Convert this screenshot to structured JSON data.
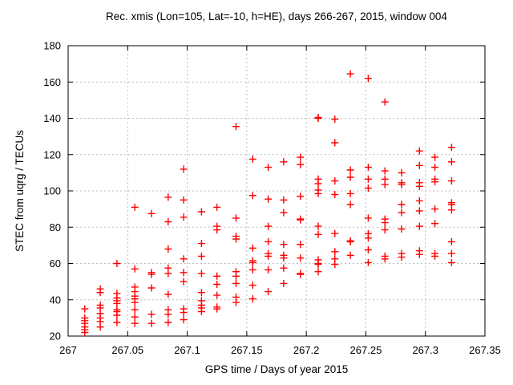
{
  "chart_data": {
    "type": "scatter",
    "title": "Rec. xmis (Lon=105, Lat=-10, h=HE), days 266-267, 2015, window 004",
    "xlabel": "GPS time / Days of year 2015",
    "ylabel": "STEC from uqrg / TECUs",
    "xlim": [
      267,
      267.35
    ],
    "ylim": [
      20,
      180
    ],
    "xticks": [
      267,
      267.05,
      267.1,
      267.15,
      267.2,
      267.25,
      267.3,
      267.35
    ],
    "xtick_labels": [
      "267",
      "267.05",
      "267.1",
      "267.15",
      "267.2",
      "267.25",
      "267.3",
      "267.35"
    ],
    "yticks": [
      20,
      40,
      60,
      80,
      100,
      120,
      140,
      160,
      180
    ],
    "ytick_labels": [
      "20",
      "40",
      "60",
      "80",
      "100",
      "120",
      "140",
      "160",
      "180"
    ],
    "grid": true,
    "legend": "none",
    "marker": {
      "shape": "plus",
      "color": "#ff0000",
      "size": 9
    },
    "colors": {
      "marker": "#ff0000",
      "grid": "#bbbbbb",
      "border": "#000000",
      "background": "#ffffff",
      "text": "#000000"
    },
    "series": [
      {
        "name": "STEC",
        "color": "#ff0000",
        "points": [
          [
            267.014,
            35
          ],
          [
            267.014,
            30
          ],
          [
            267.014,
            28.5
          ],
          [
            267.014,
            27
          ],
          [
            267.014,
            25
          ],
          [
            267.014,
            23.5
          ],
          [
            267.014,
            22
          ],
          [
            267.027,
            46
          ],
          [
            267.027,
            44
          ],
          [
            267.027,
            37
          ],
          [
            267.027,
            35.5
          ],
          [
            267.027,
            32.5
          ],
          [
            267.027,
            30
          ],
          [
            267.027,
            28
          ],
          [
            267.027,
            25
          ],
          [
            267.041,
            60
          ],
          [
            267.041,
            43.5
          ],
          [
            267.041,
            41
          ],
          [
            267.041,
            39.5
          ],
          [
            267.041,
            38
          ],
          [
            267.041,
            34.5
          ],
          [
            267.041,
            33.5
          ],
          [
            267.041,
            31.5
          ],
          [
            267.041,
            27.5
          ],
          [
            267.056,
            91
          ],
          [
            267.056,
            57
          ],
          [
            267.056,
            47
          ],
          [
            267.056,
            44.5
          ],
          [
            267.056,
            42
          ],
          [
            267.056,
            40.5
          ],
          [
            267.056,
            38.5
          ],
          [
            267.056,
            34.5
          ],
          [
            267.056,
            30.5
          ],
          [
            267.056,
            27
          ],
          [
            267.07,
            87.5
          ],
          [
            267.07,
            55
          ],
          [
            267.07,
            54
          ],
          [
            267.07,
            46.5
          ],
          [
            267.07,
            32
          ],
          [
            267.07,
            27
          ],
          [
            267.084,
            96.5
          ],
          [
            267.084,
            83
          ],
          [
            267.084,
            68
          ],
          [
            267.084,
            57.5
          ],
          [
            267.084,
            54.5
          ],
          [
            267.084,
            43
          ],
          [
            267.084,
            34.5
          ],
          [
            267.084,
            32
          ],
          [
            267.084,
            27.5
          ],
          [
            267.097,
            112
          ],
          [
            267.097,
            95
          ],
          [
            267.097,
            85.5
          ],
          [
            267.097,
            62.5
          ],
          [
            267.097,
            55
          ],
          [
            267.097,
            50
          ],
          [
            267.097,
            35
          ],
          [
            267.097,
            33
          ],
          [
            267.097,
            29
          ],
          [
            267.112,
            88.5
          ],
          [
            267.112,
            71
          ],
          [
            267.112,
            64
          ],
          [
            267.112,
            54.5
          ],
          [
            267.112,
            44
          ],
          [
            267.112,
            39.5
          ],
          [
            267.112,
            37
          ],
          [
            267.112,
            35.5
          ],
          [
            267.112,
            33.5
          ],
          [
            267.125,
            91
          ],
          [
            267.125,
            80.5
          ],
          [
            267.125,
            78.5
          ],
          [
            267.125,
            53
          ],
          [
            267.125,
            48.5
          ],
          [
            267.125,
            42.5
          ],
          [
            267.125,
            36
          ],
          [
            267.125,
            35
          ],
          [
            267.141,
            135.5
          ],
          [
            267.141,
            85
          ],
          [
            267.141,
            75
          ],
          [
            267.141,
            73.5
          ],
          [
            267.141,
            55.5
          ],
          [
            267.141,
            53
          ],
          [
            267.141,
            49
          ],
          [
            267.141,
            41.5
          ],
          [
            267.141,
            38.5
          ],
          [
            267.155,
            117.5
          ],
          [
            267.155,
            97.5
          ],
          [
            267.155,
            68.5
          ],
          [
            267.155,
            61.5
          ],
          [
            267.155,
            60.5
          ],
          [
            267.155,
            56.5
          ],
          [
            267.155,
            48
          ],
          [
            267.155,
            40.5
          ],
          [
            267.168,
            113
          ],
          [
            267.168,
            95.5
          ],
          [
            267.168,
            80.5
          ],
          [
            267.168,
            72
          ],
          [
            267.168,
            65.5
          ],
          [
            267.168,
            64
          ],
          [
            267.168,
            56.5
          ],
          [
            267.168,
            44.5
          ],
          [
            267.181,
            116
          ],
          [
            267.181,
            95
          ],
          [
            267.181,
            88
          ],
          [
            267.181,
            70.5
          ],
          [
            267.181,
            64.5
          ],
          [
            267.181,
            63
          ],
          [
            267.181,
            57.5
          ],
          [
            267.181,
            49
          ],
          [
            267.195,
            118.5
          ],
          [
            267.195,
            114.5
          ],
          [
            267.195,
            97
          ],
          [
            267.195,
            84.5
          ],
          [
            267.195,
            84
          ],
          [
            267.195,
            70.5
          ],
          [
            267.195,
            63
          ],
          [
            267.195,
            54.5
          ],
          [
            267.195,
            54
          ],
          [
            267.21,
            140.5
          ],
          [
            267.21,
            140
          ],
          [
            267.21,
            106.5
          ],
          [
            267.21,
            104
          ],
          [
            267.21,
            100.5
          ],
          [
            267.21,
            98.5
          ],
          [
            267.21,
            80.5
          ],
          [
            267.21,
            76
          ],
          [
            267.21,
            62
          ],
          [
            267.21,
            60
          ],
          [
            267.21,
            59.5
          ],
          [
            267.21,
            55.5
          ],
          [
            267.224,
            139.5
          ],
          [
            267.224,
            126.5
          ],
          [
            267.224,
            105.5
          ],
          [
            267.224,
            98
          ],
          [
            267.224,
            76.5
          ],
          [
            267.224,
            66.5
          ],
          [
            267.224,
            62.5
          ],
          [
            267.224,
            59.5
          ],
          [
            267.237,
            164.5
          ],
          [
            267.237,
            111.5
          ],
          [
            267.237,
            107.5
          ],
          [
            267.237,
            98.5
          ],
          [
            267.237,
            92.5
          ],
          [
            267.237,
            72.5
          ],
          [
            267.237,
            72
          ],
          [
            267.237,
            64.5
          ],
          [
            267.252,
            162
          ],
          [
            267.252,
            113
          ],
          [
            267.252,
            106.5
          ],
          [
            267.252,
            101.5
          ],
          [
            267.252,
            85
          ],
          [
            267.252,
            76.5
          ],
          [
            267.252,
            74
          ],
          [
            267.252,
            67.5
          ],
          [
            267.252,
            60.5
          ],
          [
            267.266,
            149
          ],
          [
            267.266,
            111
          ],
          [
            267.266,
            106.5
          ],
          [
            267.266,
            103.5
          ],
          [
            267.266,
            84.5
          ],
          [
            267.266,
            82.5
          ],
          [
            267.266,
            78.5
          ],
          [
            267.266,
            64
          ],
          [
            267.266,
            62.5
          ],
          [
            267.28,
            110
          ],
          [
            267.28,
            104.5
          ],
          [
            267.28,
            103.5
          ],
          [
            267.28,
            92.5
          ],
          [
            267.28,
            88
          ],
          [
            267.28,
            79
          ],
          [
            267.28,
            65.5
          ],
          [
            267.28,
            63.5
          ],
          [
            267.295,
            122
          ],
          [
            267.295,
            114
          ],
          [
            267.295,
            104.5
          ],
          [
            267.295,
            102.5
          ],
          [
            267.295,
            94.5
          ],
          [
            267.295,
            89
          ],
          [
            267.295,
            80.5
          ],
          [
            267.295,
            67
          ],
          [
            267.295,
            65
          ],
          [
            267.308,
            118.5
          ],
          [
            267.308,
            113
          ],
          [
            267.308,
            106.5
          ],
          [
            267.308,
            105
          ],
          [
            267.308,
            90
          ],
          [
            267.308,
            82
          ],
          [
            267.308,
            65.5
          ],
          [
            267.308,
            64
          ],
          [
            267.322,
            124
          ],
          [
            267.322,
            116
          ],
          [
            267.322,
            105.5
          ],
          [
            267.322,
            93.5
          ],
          [
            267.322,
            92.5
          ],
          [
            267.322,
            89.5
          ],
          [
            267.322,
            72
          ],
          [
            267.322,
            65.5
          ],
          [
            267.322,
            60.5
          ]
        ]
      }
    ]
  }
}
